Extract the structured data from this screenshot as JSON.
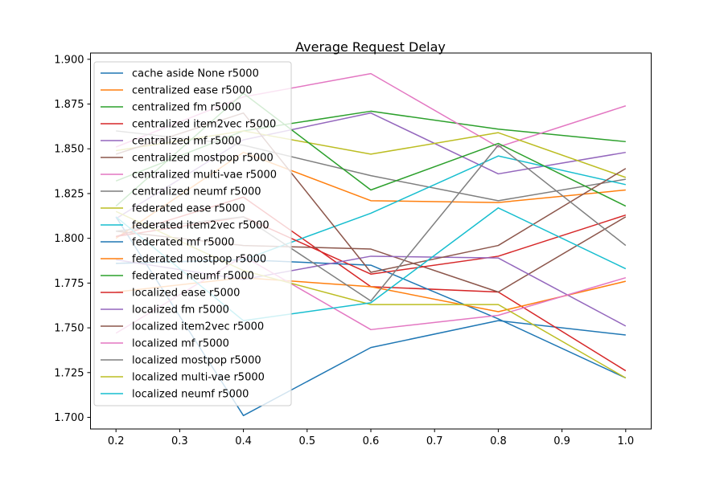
{
  "chart_data": {
    "type": "line",
    "title": "Average Request Delay",
    "xlabel": "",
    "ylabel": "",
    "x": [
      0.2,
      0.4,
      0.6,
      0.8,
      1.0
    ],
    "xlim": [
      0.16,
      1.04
    ],
    "ylim": [
      1.6935,
      1.9035
    ],
    "xticks": [
      "0.2",
      "0.3",
      "0.4",
      "0.5",
      "0.6",
      "0.7",
      "0.8",
      "0.9",
      "1.0"
    ],
    "yticks": [
      "1.700",
      "1.725",
      "1.750",
      "1.775",
      "1.800",
      "1.825",
      "1.850",
      "1.875",
      "1.900"
    ],
    "grid": false,
    "legend_position": "upper-left",
    "series": [
      {
        "name": "cache aside None r5000",
        "color": "#1f77b4",
        "values": [
          1.812,
          1.701,
          1.739,
          1.754,
          1.746
        ]
      },
      {
        "name": "centralized ease r5000",
        "color": "#ff7f0e",
        "values": [
          1.8,
          1.848,
          1.821,
          1.82,
          1.827
        ]
      },
      {
        "name": "centralized fm r5000",
        "color": "#2ca02c",
        "values": [
          1.832,
          1.86,
          1.871,
          1.861,
          1.854
        ]
      },
      {
        "name": "centralized item2vec r5000",
        "color": "#d62728",
        "values": [
          1.801,
          1.823,
          1.773,
          1.77,
          1.726
        ]
      },
      {
        "name": "centralized mf r5000",
        "color": "#9467bd",
        "values": [
          1.811,
          1.855,
          1.87,
          1.836,
          1.848
        ]
      },
      {
        "name": "centralized mostpop r5000",
        "color": "#8c564b",
        "values": [
          1.804,
          1.796,
          1.794,
          1.77,
          1.812
        ]
      },
      {
        "name": "centralized multi-vae r5000",
        "color": "#e377c2",
        "values": [
          1.851,
          1.879,
          1.892,
          1.851,
          1.874
        ]
      },
      {
        "name": "centralized neumf r5000",
        "color": "#7f7f7f",
        "values": [
          1.86,
          1.852,
          1.835,
          1.821,
          1.833
        ]
      },
      {
        "name": "federated ease r5000",
        "color": "#bcbd22",
        "values": [
          1.849,
          1.86,
          1.847,
          1.859,
          1.834
        ]
      },
      {
        "name": "federated item2vec r5000",
        "color": "#17becf",
        "values": [
          1.786,
          1.788,
          1.814,
          1.846,
          1.83
        ]
      },
      {
        "name": "federated mf r5000",
        "color": "#1f77b4",
        "values": [
          1.786,
          1.788,
          1.785,
          1.755,
          1.722
        ]
      },
      {
        "name": "federated mostpop r5000",
        "color": "#ff7f0e",
        "values": [
          1.77,
          1.778,
          1.773,
          1.759,
          1.776
        ]
      },
      {
        "name": "federated neumf r5000",
        "color": "#2ca02c",
        "values": [
          1.818,
          1.881,
          1.827,
          1.853,
          1.818
        ]
      },
      {
        "name": "localized ease r5000",
        "color": "#d62728",
        "values": [
          1.801,
          1.812,
          1.78,
          1.79,
          1.813
        ]
      },
      {
        "name": "localized fm r5000",
        "color": "#9467bd",
        "values": [
          1.788,
          1.777,
          1.79,
          1.789,
          1.751
        ]
      },
      {
        "name": "localized item2vec r5000",
        "color": "#8c564b",
        "values": [
          1.847,
          1.87,
          1.781,
          1.796,
          1.839
        ]
      },
      {
        "name": "localized mf r5000",
        "color": "#e377c2",
        "values": [
          1.747,
          1.79,
          1.749,
          1.757,
          1.778
        ]
      },
      {
        "name": "localized mostpop r5000",
        "color": "#7f7f7f",
        "values": [
          1.804,
          1.812,
          1.765,
          1.852,
          1.796
        ]
      },
      {
        "name": "localized multi-vae r5000",
        "color": "#bcbd22",
        "values": [
          1.815,
          1.782,
          1.763,
          1.763,
          1.722
        ]
      },
      {
        "name": "localized neumf r5000",
        "color": "#17becf",
        "values": [
          1.812,
          1.754,
          1.764,
          1.817,
          1.783
        ]
      }
    ]
  }
}
